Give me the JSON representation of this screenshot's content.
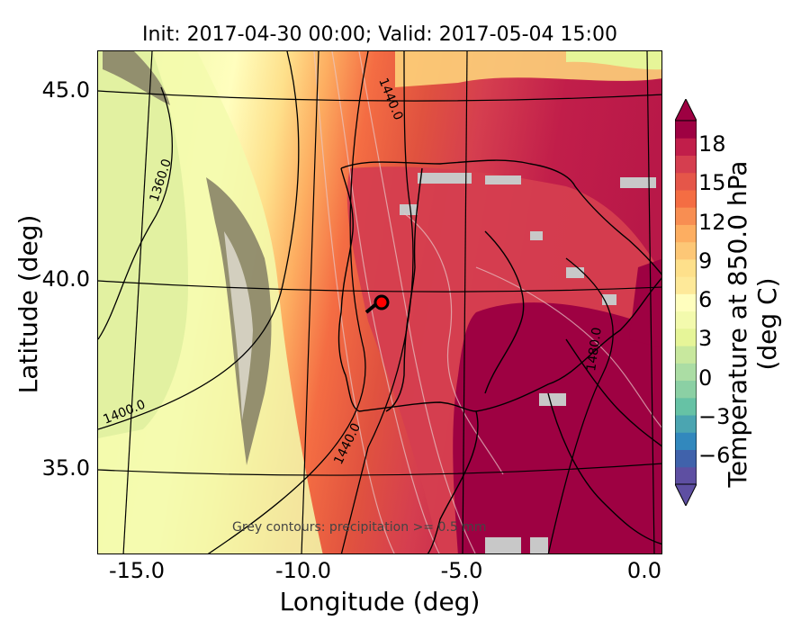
{
  "title": "Init: 2017-04-30 00:00; Valid: 2017-05-04 15:00",
  "xlabel": "Longitude (deg)",
  "ylabel": "Latitude (deg)",
  "x_ticks": [
    "-15.0",
    "-10.0",
    "-5.0",
    "0.0"
  ],
  "y_ticks": [
    "45.0",
    "40.0",
    "35.0"
  ],
  "colorbar": {
    "label": "Temperature at 850.0 hPa (deg C)",
    "ticks": [
      "18",
      "15",
      "12",
      "9",
      "6",
      "3",
      "0",
      "−3",
      "−6"
    ],
    "colors": [
      "#5e4fa2",
      "#4062ab",
      "#3288bd",
      "#4ba5b1",
      "#66c2a5",
      "#8bd0a4",
      "#abdda4",
      "#c8e89e",
      "#e6f598",
      "#f3faad",
      "#fffebe",
      "#fee999",
      "#fee08b",
      "#fdc776",
      "#fdae61",
      "#f88e52",
      "#f46d43",
      "#e55649",
      "#d53e4f",
      "#c11e4a",
      "#9e0142"
    ],
    "range": [
      -8,
      20
    ]
  },
  "contour_labels": {
    "c1360": "1360.0",
    "c1400": "1400.0",
    "c1440a": "1440.0",
    "c1440b": "1440.0",
    "c1480": "1480.0"
  },
  "precip_note": "Grey contours: precipitation >= 0.5 mm",
  "marker": {
    "lon": -7.6,
    "lat": 39.4,
    "color": "#ff0000"
  },
  "chart_data": {
    "type": "heatmap",
    "title": "Init: 2017-04-30 00:00; Valid: 2017-05-04 15:00",
    "xlabel": "Longitude (deg)",
    "ylabel": "Latitude (deg)",
    "xlim": [
      -16,
      0.2
    ],
    "ylim": [
      32.5,
      46
    ],
    "variable": "Temperature at 850.0 hPa (deg C)",
    "color_range": [
      -8,
      20
    ],
    "height_contours": [
      1360,
      1400,
      1440,
      1480
    ],
    "marker": {
      "lon": -7.6,
      "lat": 39.4
    }
  }
}
